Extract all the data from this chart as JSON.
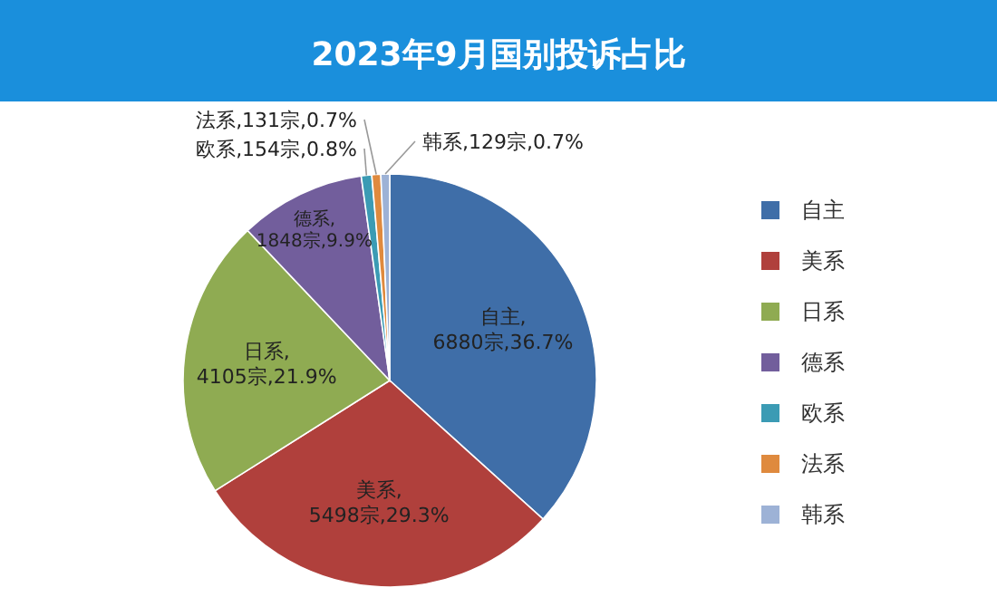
{
  "chart_data": {
    "type": "pie",
    "title": "2023年9月国别投诉占比",
    "categories": [
      "自主",
      "美系",
      "日系",
      "德系",
      "欧系",
      "法系",
      "韩系"
    ],
    "values": [
      6880,
      5498,
      4105,
      1848,
      154,
      131,
      129
    ],
    "colors": [
      "#3f6ea8",
      "#b0403c",
      "#8fab52",
      "#725e9c",
      "#3b9bb4",
      "#df8a3e",
      "#9db2d6"
    ],
    "value_labels": [
      "自主,6880宗,36.7%",
      "美系,5498宗,29.3%",
      "日系,4105宗,21.9%",
      "德系,1848宗,9.9%",
      "欧系,154宗,0.8%",
      "法系,131宗,0.7%",
      "韩系,129宗,0.7%"
    ],
    "legend": "right"
  }
}
